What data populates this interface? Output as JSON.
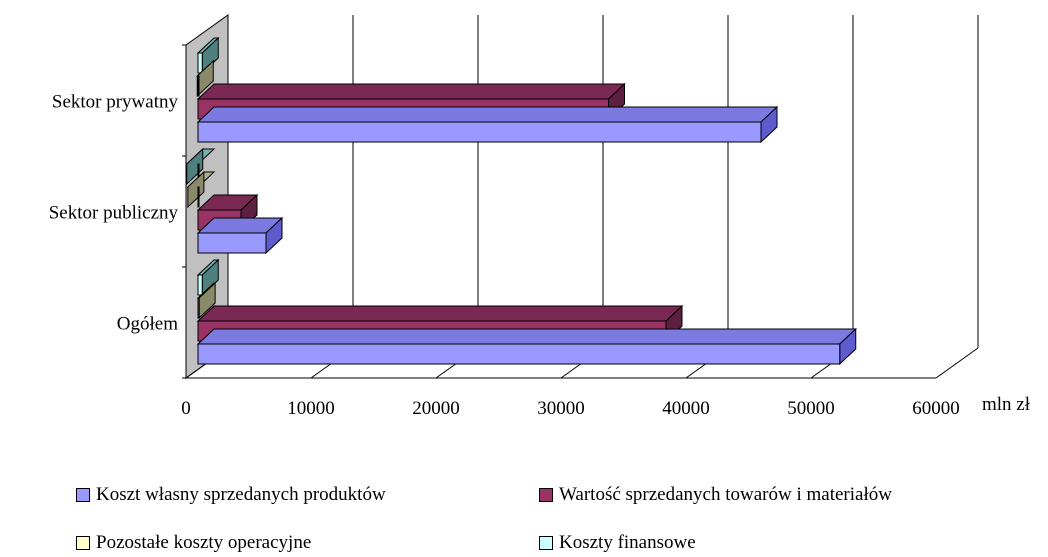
{
  "chart_data": {
    "type": "bar",
    "orientation": "horizontal",
    "three_d": true,
    "categories": [
      "Sektor prywatny",
      "Sektor publiczny",
      "Ogółem"
    ],
    "series": [
      {
        "name": "Koszt własny sprzedanych produktów",
        "values": [
          46000,
          6400,
          52300
        ],
        "color": "#9999ff",
        "side": "#5c5ccc",
        "top": "#7a7ae0"
      },
      {
        "name": "Wartość sprzedanych towarów i materiałów",
        "values": [
          33800,
          4400,
          38400
        ],
        "color": "#993366",
        "side": "#5c1f3d",
        "top": "#7a2952"
      },
      {
        "name": "Pozostałe koszty operacyjne",
        "values": [
          900,
          150,
          1050
        ],
        "color": "#ffffcc",
        "side": "#8a8a6a",
        "top": "#b0b090"
      },
      {
        "name": "Koszty finansowe",
        "values": [
          1300,
          60,
          1300
        ],
        "color": "#ccffff",
        "side": "#4f8080",
        "top": "#7ab0b0"
      }
    ],
    "xlim": [
      0,
      60000
    ],
    "xticks": [
      "0",
      "10000",
      "20000",
      "30000",
      "40000",
      "50000",
      "60000"
    ],
    "xunit": "mln zł",
    "grid": true,
    "legend_position": "bottom"
  },
  "legend": {
    "items": [
      "Koszt własny sprzedanych produktów",
      "Wartość sprzedanych towarów i materiałów",
      "Pozostałe koszty operacyjne",
      "Koszty finansowe"
    ]
  }
}
